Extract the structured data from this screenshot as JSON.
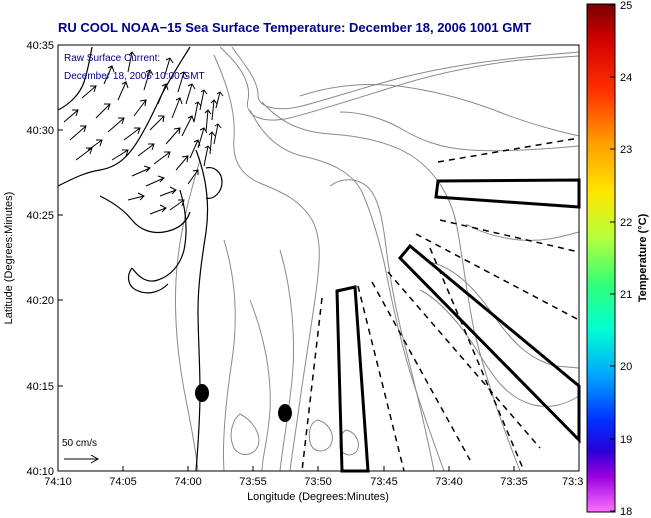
{
  "title": "RU COOL  NOAA−15  Sea Surface Temperature:  December 18, 2006 1001 GMT",
  "current_label_line1": "Raw Surface Current:",
  "current_label_line2": "December 18, 2006 10:00 GMT",
  "scale_label": "50 cm/s",
  "xaxis_title": "Longitude (Degrees:Minutes)",
  "yaxis_title": "Latitude (Degrees:Minutes)",
  "xticks": [
    "74:10",
    "74:05",
    "74:00",
    "73:55",
    "73:50",
    "73:45",
    "73:40",
    "73:35",
    "73:3"
  ],
  "yticks": [
    "40:35",
    "40:30",
    "40:25",
    "40:20",
    "40:15",
    "40:10"
  ],
  "colorbar": {
    "title": "Temperature (°C)",
    "ticks": [
      "25",
      "24",
      "23",
      "22",
      "21",
      "20",
      "19",
      "18"
    ],
    "range": [
      18,
      25
    ]
  },
  "colors": {
    "title": "#00008b",
    "contour": "#8a8a8a",
    "outline": "#000000",
    "background": "#ffffff"
  }
}
